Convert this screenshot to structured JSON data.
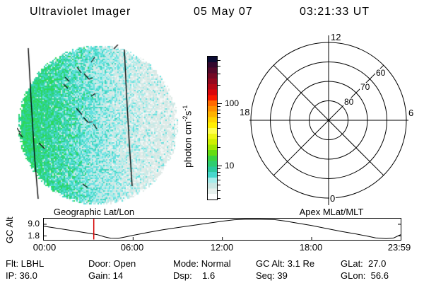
{
  "header": {
    "title": "Ultraviolet Imager",
    "date": "05 May 07",
    "time": "03:21:33 UT"
  },
  "colorbar": {
    "unit": {
      "base1": "photon cm",
      "sup1": "-2",
      "base2": "s",
      "sup2": "-1"
    },
    "major_ticks": [
      {
        "value": 100,
        "label": "100"
      },
      {
        "value": 10,
        "label": "10"
      }
    ],
    "minor_ticks": [
      3,
      4,
      5,
      6,
      7,
      8,
      9,
      20,
      30,
      40,
      50,
      60,
      70,
      80,
      90,
      200,
      300,
      400,
      500
    ],
    "scale": "log",
    "range_approx": [
      3,
      500
    ],
    "colors": [
      "#0b0b32",
      "#33082e",
      "#53082a",
      "#730824",
      "#93071e",
      "#b30716",
      "#d9060c",
      "#f81800",
      "#ff6a00",
      "#ff9000",
      "#ffb200",
      "#ffd400",
      "#ffee00",
      "#ffff4d",
      "#eef714",
      "#cdf000",
      "#9fe800",
      "#66dc12",
      "#3ad342",
      "#2ecd70",
      "#2cc99e",
      "#46d7cc",
      "#a4eceb",
      "#c9e7e3",
      "#e6f0ed",
      "#fdfefe"
    ]
  },
  "disk": {
    "seed": 20070505,
    "palette": {
      "green": "#2bd95c",
      "teal": "#2fd295",
      "teal_cyan": "#3ed6c0",
      "cyan": "#62e0de",
      "light_cyan": "#9cecea",
      "pale_cyan": "#c8e9e6",
      "pale": "#dfeae7",
      "white": "#f2f6f5"
    },
    "lines": [
      [
        [
          16,
          5
        ],
        [
          20,
          78
        ],
        [
          25,
          160
        ],
        [
          30,
          218
        ]
      ],
      [
        [
          152,
          7
        ],
        [
          155,
          70
        ],
        [
          159,
          140
        ],
        [
          163,
          200
        ]
      ]
    ],
    "marks": [
      [
        137,
        6,
        143,
        0
      ],
      [
        105,
        25,
        110,
        18
      ],
      [
        85,
        32,
        91,
        40
      ],
      [
        95,
        41,
        102,
        49
      ],
      [
        102,
        49,
        107,
        47
      ],
      [
        68,
        46,
        74,
        52
      ],
      [
        66,
        56,
        72,
        62
      ],
      [
        105,
        73,
        111,
        69
      ],
      [
        84,
        90,
        92,
        99
      ],
      [
        94,
        103,
        101,
        110
      ],
      [
        101,
        110,
        107,
        109
      ],
      [
        108,
        112,
        113,
        119
      ],
      [
        0,
        118,
        5,
        125
      ],
      [
        3,
        125,
        8,
        131
      ],
      [
        31,
        139,
        39,
        147
      ],
      [
        93,
        197,
        100,
        202
      ]
    ]
  },
  "chart_data": [
    {
      "type": "line",
      "title": "GC Alt",
      "ylabel": "GC Alt",
      "ytick_labels": [
        "9.0",
        "1.8"
      ],
      "yticks": [
        9.0,
        1.8
      ],
      "ylim": [
        0,
        12.4
      ],
      "xticklabels": [
        "00:00",
        "06:00",
        "12:00",
        "18:00",
        "23:59"
      ],
      "xtick_hours": [
        0,
        6,
        12,
        18,
        23.983
      ],
      "xlim_hours": [
        0,
        23.983
      ],
      "series": [
        {
          "name": "GC Alt (Re)",
          "x_hours": [
            0,
            0.7,
            1.5,
            2.3,
            3,
            3.6,
            4.1,
            4.5,
            5,
            5.4,
            6,
            7,
            8,
            9,
            10,
            11,
            12,
            12.8,
            13.5,
            14.5,
            15.5,
            16.2,
            17,
            18,
            19,
            20,
            21,
            21.8,
            22.3,
            23,
            23.5,
            23.98
          ],
          "values": [
            7.8,
            6.8,
            5.7,
            4.5,
            3.5,
            2.6,
            1.2,
            0.4,
            0.3,
            1.0,
            2.2,
            4.0,
            5.6,
            7.0,
            8.3,
            9.6,
            10.9,
            11.8,
            12.3,
            12.4,
            11.9,
            11.0,
            9.8,
            8.2,
            6.4,
            4.6,
            3.0,
            1.6,
            0.6,
            0.2,
            0.5,
            2.6
          ]
        }
      ],
      "marker": {
        "type": "vline",
        "x_hours": 3.359,
        "color": "#d40000",
        "label": "current time 03:21:33 UT"
      }
    },
    {
      "type": "heatmap",
      "title": "Geographic Lat/Lon",
      "description": "Speckled UV Earth-disk image; bright green-teal counts at left limb fading through cyan to pale gray at right; two near-vertical meridian lines and short geographic tick marks overlaid",
      "colorbar_label": "photon cm-2 s-1",
      "colorbar_ticks": [
        10,
        100
      ]
    },
    {
      "type": "polar-grid",
      "title": "Apex MLat/MLT",
      "rings_mlat": [
        80,
        70,
        60,
        50
      ],
      "ring_labels": [
        "60",
        "70",
        "80"
      ],
      "mlt_labels": [
        "12",
        "18",
        "6",
        "0"
      ]
    }
  ],
  "status": {
    "rows": [
      [
        "Flt: LBHL",
        "Door: Open",
        "Mode: Normal",
        "GC Alt: 3.1 Re",
        "GLat:  27.0"
      ],
      [
        "IP: 36.0",
        "Gain: 14",
        "Dsp:    1.6",
        "Seq: 39",
        "GLon:  56.6"
      ]
    ]
  }
}
